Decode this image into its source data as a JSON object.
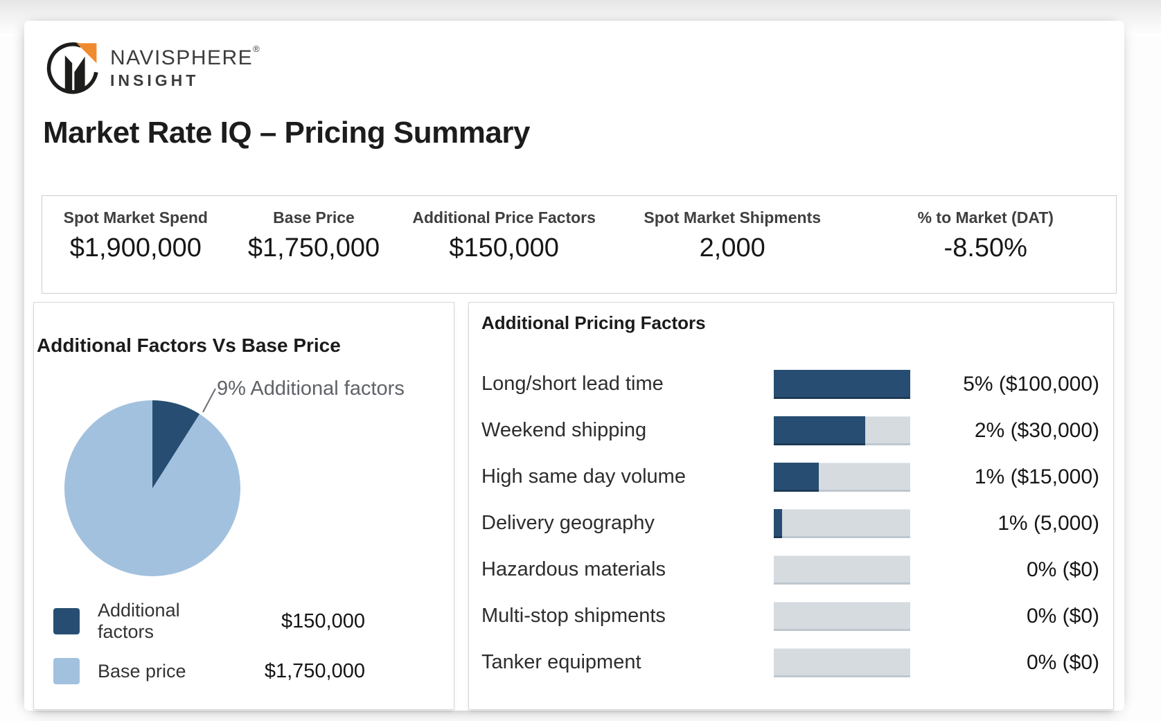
{
  "brand": {
    "name": "NAVISPHERE",
    "registered": "®",
    "subtitle": "INSIGHT"
  },
  "page": {
    "title": "Market Rate IQ – Pricing Summary"
  },
  "kpis": [
    {
      "label": "Spot Market Spend",
      "value": "$1,900,000"
    },
    {
      "label": "Base Price",
      "value": "$1,750,000"
    },
    {
      "label": "Additional Price Factors",
      "value": "$150,000"
    },
    {
      "label": "Spot Market Shipments",
      "value": "2,000"
    },
    {
      "label": "% to Market (DAT)",
      "value": "-8.50%"
    }
  ],
  "colors": {
    "navy": "#274e72",
    "lightblue": "#a2c1de",
    "track": "#d6dbe0",
    "trackedge": "#bdc7cf",
    "panelborder": "#d6d6d6"
  },
  "chart_data": [
    {
      "type": "pie",
      "title": "Additional Factors Vs Base Price",
      "annotation": "9% Additional factors",
      "legend_position": "bottom-left",
      "slices": [
        {
          "label": "Additional factors",
          "value": 150000,
          "display": "$150,000",
          "percent": 9,
          "color": "#274e72"
        },
        {
          "label": "Base price",
          "value": 1750000,
          "display": "$1,750,000",
          "percent": 91,
          "color": "#a2c1de"
        }
      ]
    },
    {
      "type": "bar",
      "orientation": "horizontal",
      "title": "Additional Pricing Factors",
      "categories": [
        "Long/short lead time",
        "Weekend shipping",
        "High same day volume",
        "Delivery geography",
        "Hazardous materials",
        "Multi-stop shipments",
        "Tanker equipment"
      ],
      "percents": [
        5,
        2,
        1,
        1,
        0,
        0,
        0
      ],
      "amounts": [
        100000,
        30000,
        15000,
        5000,
        0,
        0,
        0
      ],
      "values_display": [
        "5% ($100,000)",
        "2% ($30,000)",
        "1% ($15,000)",
        "1% (5,000)",
        "0% ($0)",
        "0% ($0)",
        "0% ($0)"
      ],
      "fill_pct": [
        100,
        67,
        33,
        6,
        0,
        0,
        0
      ],
      "bar_color": "#274e72",
      "track_color": "#d6dbe0",
      "grid": false,
      "legend": false
    }
  ]
}
